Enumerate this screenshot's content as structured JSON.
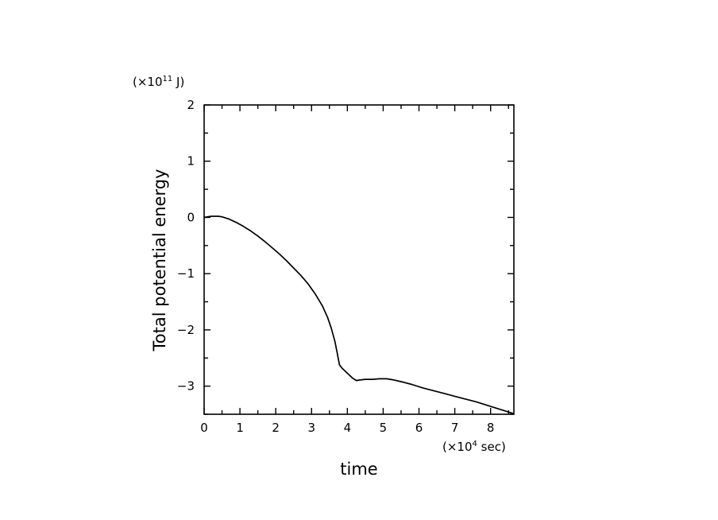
{
  "chart_data": {
    "type": "line",
    "xlabel": "time",
    "ylabel": "Total potential energy",
    "x_unit": {
      "prefix": "(×10",
      "exp": "4",
      "suffix": " sec)"
    },
    "y_unit": {
      "prefix": "(×10",
      "exp": "11",
      "suffix": " J)"
    },
    "xlim": [
      0,
      8.65
    ],
    "ylim": [
      -3.5,
      2
    ],
    "x_ticks": [
      "0",
      "1",
      "2",
      "3",
      "4",
      "5",
      "6",
      "7",
      "8"
    ],
    "y_ticks": [
      "2",
      "1",
      "0",
      "−1",
      "−2",
      "−3"
    ],
    "x_tick_values": [
      0,
      1,
      2,
      3,
      4,
      5,
      6,
      7,
      8
    ],
    "y_tick_values": [
      2,
      1,
      0,
      -1,
      -2,
      -3
    ],
    "grid": false,
    "series": [
      {
        "x": [
          0,
          0.1,
          0.2,
          0.3,
          0.4,
          0.5,
          0.7,
          0.9,
          1.1,
          1.3,
          1.5,
          1.7,
          1.9,
          2.1,
          2.3,
          2.5,
          2.7,
          2.9,
          3.1,
          3.3,
          3.45,
          3.55,
          3.65,
          3.72,
          3.78,
          3.85,
          3.95,
          4.05,
          4.15,
          4.25,
          4.35,
          4.5,
          4.7,
          4.9,
          5.1,
          5.3,
          5.5,
          5.8,
          6.1,
          6.4,
          6.7,
          7.0,
          7.3,
          7.6,
          7.9,
          8.2,
          8.5,
          8.65
        ],
        "y": [
          0.0,
          0.01,
          0.02,
          0.02,
          0.02,
          0.01,
          -0.03,
          -0.09,
          -0.16,
          -0.24,
          -0.33,
          -0.43,
          -0.54,
          -0.65,
          -0.77,
          -0.9,
          -1.03,
          -1.18,
          -1.36,
          -1.57,
          -1.78,
          -1.97,
          -2.2,
          -2.42,
          -2.62,
          -2.68,
          -2.74,
          -2.8,
          -2.86,
          -2.9,
          -2.89,
          -2.88,
          -2.88,
          -2.87,
          -2.87,
          -2.89,
          -2.92,
          -2.97,
          -3.03,
          -3.08,
          -3.13,
          -3.18,
          -3.23,
          -3.28,
          -3.34,
          -3.4,
          -3.46,
          -3.49
        ]
      }
    ]
  }
}
